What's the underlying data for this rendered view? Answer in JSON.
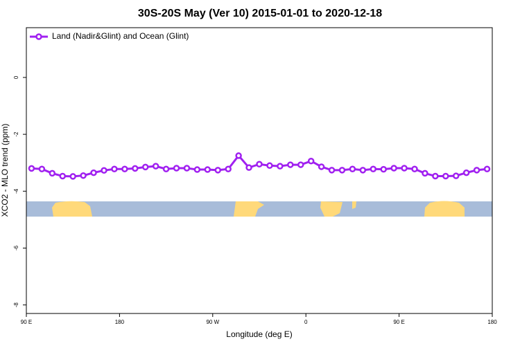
{
  "chart_data": {
    "type": "line",
    "title": "30S-20S May (Ver 10)   2015-01-01 to 2020-12-18",
    "xlabel": "Longitude (deg E)",
    "ylabel": "XCO2 - MLO trend (ppm)",
    "x": [
      95,
      105,
      115,
      125,
      135,
      145,
      155,
      165,
      175,
      185,
      195,
      205,
      215,
      225,
      235,
      245,
      255,
      265,
      275,
      285,
      295,
      305,
      315,
      325,
      335,
      345,
      355,
      365,
      375,
      385,
      395,
      405,
      415,
      425,
      435,
      445,
      455,
      465,
      475,
      485,
      495,
      505,
      515,
      525,
      535
    ],
    "series": [
      {
        "name": "Land (Nadir&Glint) and Ocean (Glint)",
        "color": "#a020f0",
        "values": [
          -3.2,
          -3.22,
          -3.37,
          -3.47,
          -3.48,
          -3.45,
          -3.35,
          -3.27,
          -3.22,
          -3.22,
          -3.2,
          -3.15,
          -3.12,
          -3.22,
          -3.19,
          -3.19,
          -3.24,
          -3.24,
          -3.26,
          -3.22,
          -2.75,
          -3.17,
          -3.05,
          -3.1,
          -3.12,
          -3.07,
          -3.07,
          -2.94,
          -3.14,
          -3.26,
          -3.26,
          -3.22,
          -3.26,
          -3.22,
          -3.23,
          -3.19,
          -3.19,
          -3.22,
          -3.37,
          -3.47,
          -3.47,
          -3.46,
          -3.35,
          -3.26,
          -3.22
        ]
      }
    ],
    "xlim": [
      90,
      540
    ],
    "xticks": [
      {
        "value": 90,
        "label": "90 E"
      },
      {
        "value": 180,
        "label": "180"
      },
      {
        "value": 270,
        "label": "90 W"
      },
      {
        "value": 360,
        "label": "0"
      },
      {
        "value": 450,
        "label": "90 E"
      },
      {
        "value": 540,
        "label": "180"
      }
    ],
    "ylim": [
      -8.3,
      1.75
    ],
    "yticks": [
      -8,
      -6,
      -4,
      -2,
      0
    ],
    "legend": "top-left"
  }
}
